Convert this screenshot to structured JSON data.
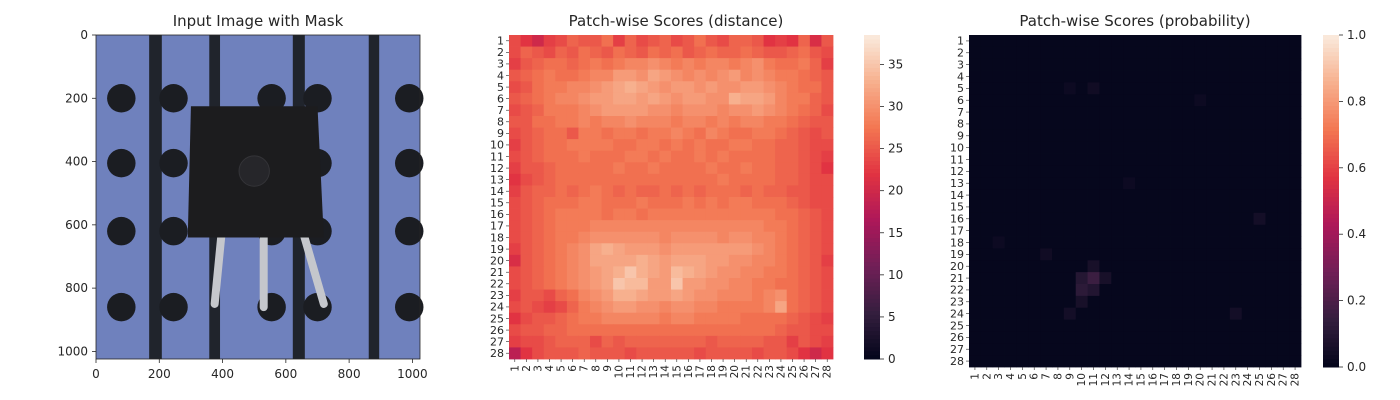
{
  "figure": {
    "panels": [
      {
        "title": "Input Image with Mask"
      },
      {
        "title": "Patch-wise Scores (distance)"
      },
      {
        "title": "Patch-wise Scores (probability)"
      }
    ]
  },
  "colors": {
    "background": "#ffffff",
    "board_blue": "#6f81bd",
    "board_slot": "#20242c",
    "board_hole": "#1b1d22",
    "component_body": "#1c1c1e",
    "lead_silver": "#c5c7cc",
    "colormap": "rocket",
    "colormap_stops": [
      "#03051a",
      "#341e3e",
      "#701f57",
      "#ad1759",
      "#e13342",
      "#f37651",
      "#f7b08e",
      "#faebdd"
    ]
  },
  "chart_data": [
    {
      "type": "image",
      "title": "Input Image with Mask",
      "description_visible": "photo of a black transistor on a blue perforated board with three silver leads",
      "xticks": [
        0,
        200,
        400,
        600,
        800,
        1000
      ],
      "yticks": [
        0,
        200,
        400,
        600,
        800,
        1000
      ],
      "xlim": [
        0,
        1024
      ],
      "ylim": [
        1024,
        0
      ]
    },
    {
      "type": "heatmap",
      "title": "Patch-wise Scores (distance)",
      "rows": 28,
      "cols": 28,
      "row_labels": [
        "1",
        "2",
        "3",
        "4",
        "5",
        "6",
        "7",
        "8",
        "9",
        "10",
        "11",
        "12",
        "13",
        "14",
        "15",
        "16",
        "17",
        "18",
        "19",
        "20",
        "21",
        "22",
        "23",
        "24",
        "25",
        "26",
        "27",
        "28"
      ],
      "col_labels": [
        "1",
        "2",
        "3",
        "4",
        "5",
        "6",
        "7",
        "8",
        "9",
        "10",
        "11",
        "12",
        "13",
        "14",
        "15",
        "16",
        "17",
        "18",
        "19",
        "20",
        "21",
        "22",
        "23",
        "24",
        "25",
        "26",
        "27",
        "28"
      ],
      "vmin": 0,
      "vmax": 38.5,
      "colorbar_ticks": [
        "0",
        "5",
        "10",
        "15",
        "20",
        "25",
        "30",
        "35"
      ],
      "values": [
        [
          24,
          22,
          20,
          23,
          24,
          26,
          25,
          25,
          27,
          23,
          26,
          24,
          25,
          26,
          24,
          25,
          27,
          25,
          24,
          26,
          26,
          25,
          22,
          23,
          22,
          26,
          21,
          25
        ],
        [
          24,
          26,
          25,
          24,
          26,
          25,
          27,
          26,
          25,
          27,
          26,
          25,
          27,
          26,
          27,
          25,
          26,
          27,
          26,
          26,
          27,
          26,
          25,
          25,
          26,
          27,
          25,
          24
        ],
        [
          23,
          25,
          26,
          27,
          27,
          26,
          27,
          28,
          27,
          28,
          29,
          29,
          30,
          29,
          28,
          29,
          28,
          29,
          29,
          28,
          29,
          30,
          28,
          27,
          27,
          28,
          26,
          23
        ],
        [
          25,
          26,
          27,
          28,
          27,
          27,
          28,
          29,
          29,
          31,
          31,
          30,
          32,
          31,
          30,
          29,
          30,
          29,
          30,
          31,
          29,
          30,
          29,
          28,
          28,
          27,
          26,
          25
        ],
        [
          24,
          25,
          27,
          28,
          28,
          29,
          29,
          30,
          31,
          32,
          33,
          32,
          31,
          30,
          31,
          31,
          30,
          31,
          30,
          30,
          31,
          31,
          30,
          29,
          28,
          27,
          27,
          25
        ],
        [
          25,
          26,
          27,
          28,
          29,
          29,
          30,
          31,
          31,
          32,
          32,
          31,
          32,
          31,
          30,
          31,
          31,
          30,
          30,
          33,
          32,
          32,
          31,
          29,
          28,
          28,
          26,
          25
        ],
        [
          24,
          25,
          26,
          28,
          28,
          28,
          29,
          30,
          31,
          31,
          31,
          31,
          30,
          30,
          29,
          30,
          30,
          30,
          29,
          30,
          30,
          31,
          30,
          29,
          28,
          27,
          26,
          24
        ],
        [
          25,
          25,
          27,
          27,
          28,
          28,
          29,
          28,
          29,
          29,
          30,
          29,
          29,
          29,
          28,
          29,
          29,
          28,
          29,
          28,
          29,
          29,
          28,
          28,
          27,
          26,
          25,
          25
        ],
        [
          24,
          25,
          26,
          27,
          27,
          25,
          28,
          28,
          27,
          28,
          28,
          27,
          28,
          28,
          29,
          28,
          27,
          29,
          28,
          27,
          27,
          28,
          28,
          27,
          26,
          25,
          24,
          25
        ],
        [
          23,
          25,
          26,
          27,
          27,
          28,
          28,
          28,
          28,
          27,
          27,
          28,
          28,
          27,
          28,
          27,
          28,
          27,
          27,
          28,
          28,
          27,
          27,
          26,
          26,
          25,
          24,
          24
        ],
        [
          24,
          25,
          26,
          27,
          27,
          27,
          28,
          27,
          27,
          27,
          28,
          28,
          27,
          28,
          27,
          27,
          28,
          27,
          28,
          27,
          27,
          27,
          27,
          26,
          26,
          25,
          24,
          23
        ],
        [
          23,
          25,
          25,
          26,
          27,
          27,
          27,
          27,
          27,
          28,
          27,
          27,
          28,
          27,
          27,
          27,
          27,
          28,
          27,
          27,
          28,
          27,
          27,
          26,
          26,
          25,
          24,
          22
        ],
        [
          22,
          24,
          25,
          26,
          27,
          27,
          27,
          27,
          27,
          27,
          27,
          27,
          27,
          27,
          27,
          27,
          27,
          27,
          28,
          27,
          27,
          27,
          27,
          26,
          26,
          25,
          24,
          24
        ],
        [
          23,
          25,
          26,
          26,
          27,
          26,
          27,
          28,
          27,
          26,
          27,
          26,
          26,
          27,
          26,
          27,
          26,
          27,
          27,
          27,
          26,
          27,
          26,
          26,
          25,
          25,
          24,
          24
        ],
        [
          24,
          25,
          26,
          27,
          27,
          27,
          28,
          28,
          27,
          27,
          27,
          28,
          27,
          27,
          27,
          28,
          27,
          28,
          27,
          28,
          28,
          27,
          27,
          27,
          26,
          25,
          24,
          24
        ],
        [
          24,
          25,
          26,
          27,
          28,
          28,
          28,
          28,
          27,
          28,
          28,
          27,
          28,
          28,
          28,
          28,
          28,
          28,
          28,
          28,
          28,
          28,
          28,
          27,
          27,
          26,
          25,
          24
        ],
        [
          24,
          25,
          26,
          27,
          28,
          28,
          28,
          29,
          29,
          29,
          29,
          29,
          29,
          29,
          29,
          29,
          29,
          29,
          29,
          29,
          29,
          29,
          28,
          28,
          27,
          26,
          25,
          24
        ],
        [
          24,
          25,
          26,
          27,
          28,
          28,
          29,
          30,
          30,
          30,
          30,
          30,
          30,
          29,
          30,
          30,
          30,
          30,
          29,
          30,
          30,
          29,
          29,
          28,
          27,
          26,
          25,
          24
        ],
        [
          23,
          25,
          26,
          27,
          28,
          29,
          30,
          32,
          33,
          32,
          31,
          31,
          31,
          30,
          31,
          31,
          31,
          31,
          31,
          31,
          31,
          30,
          29,
          28,
          27,
          26,
          25,
          24
        ],
        [
          21,
          25,
          26,
          27,
          28,
          29,
          30,
          32,
          32,
          32,
          32,
          33,
          32,
          31,
          32,
          32,
          32,
          31,
          31,
          30,
          30,
          29,
          29,
          28,
          27,
          26,
          25,
          23
        ],
        [
          24,
          25,
          26,
          27,
          28,
          29,
          30,
          31,
          32,
          33,
          35,
          33,
          32,
          31,
          34,
          33,
          32,
          31,
          30,
          30,
          29,
          29,
          28,
          28,
          27,
          26,
          25,
          24
        ],
        [
          24,
          25,
          26,
          27,
          28,
          29,
          30,
          31,
          32,
          35,
          34,
          34,
          31,
          31,
          35,
          31,
          31,
          30,
          30,
          29,
          29,
          28,
          28,
          27,
          27,
          26,
          25,
          24
        ],
        [
          23,
          25,
          25,
          24,
          26,
          27,
          29,
          30,
          31,
          33,
          33,
          32,
          31,
          31,
          32,
          31,
          30,
          30,
          29,
          29,
          29,
          28,
          29,
          30,
          27,
          26,
          25,
          24
        ],
        [
          24,
          25,
          24,
          23,
          24,
          26,
          28,
          29,
          30,
          31,
          31,
          30,
          30,
          29,
          30,
          30,
          29,
          29,
          28,
          28,
          28,
          28,
          29,
          32,
          27,
          26,
          25,
          24
        ],
        [
          22,
          24,
          25,
          25,
          26,
          27,
          28,
          28,
          29,
          29,
          29,
          29,
          29,
          28,
          29,
          29,
          28,
          28,
          28,
          28,
          27,
          27,
          27,
          27,
          26,
          25,
          24,
          23
        ],
        [
          24,
          25,
          25,
          26,
          26,
          27,
          27,
          27,
          27,
          27,
          27,
          27,
          27,
          27,
          27,
          27,
          27,
          27,
          27,
          27,
          27,
          27,
          27,
          26,
          25,
          25,
          24,
          24
        ],
        [
          23,
          24,
          24,
          25,
          26,
          26,
          26,
          24,
          26,
          25,
          26,
          26,
          26,
          26,
          26,
          26,
          26,
          25,
          26,
          26,
          26,
          26,
          25,
          25,
          23,
          25,
          24,
          23
        ],
        [
          18,
          22,
          24,
          25,
          25,
          25,
          26,
          25,
          25,
          25,
          24,
          25,
          25,
          25,
          25,
          25,
          24,
          25,
          25,
          25,
          25,
          24,
          25,
          25,
          24,
          22,
          20,
          22
        ]
      ]
    },
    {
      "type": "heatmap",
      "title": "Patch-wise Scores (probability)",
      "rows": 28,
      "cols": 28,
      "row_labels": [
        "1",
        "2",
        "3",
        "4",
        "5",
        "6",
        "7",
        "8",
        "9",
        "10",
        "11",
        "12",
        "13",
        "14",
        "15",
        "16",
        "17",
        "18",
        "19",
        "20",
        "21",
        "22",
        "23",
        "24",
        "25",
        "26",
        "27",
        "28"
      ],
      "col_labels": [
        "1",
        "2",
        "3",
        "4",
        "5",
        "6",
        "7",
        "8",
        "9",
        "10",
        "11",
        "12",
        "13",
        "14",
        "15",
        "16",
        "17",
        "18",
        "19",
        "20",
        "21",
        "22",
        "23",
        "24",
        "25",
        "26",
        "27",
        "28"
      ],
      "vmin": 0,
      "vmax": 1.0,
      "colorbar_ticks": [
        "0.0",
        "0.2",
        "0.4",
        "0.6",
        "0.8",
        "1.0"
      ],
      "hotspots": [
        {
          "row": 21,
          "col": 11,
          "value": 0.16
        },
        {
          "row": 21,
          "col": 10,
          "value": 0.1
        },
        {
          "row": 22,
          "col": 10,
          "value": 0.12
        },
        {
          "row": 22,
          "col": 11,
          "value": 0.09
        },
        {
          "row": 23,
          "col": 10,
          "value": 0.06
        },
        {
          "row": 20,
          "col": 11,
          "value": 0.06
        },
        {
          "row": 21,
          "col": 12,
          "value": 0.06
        },
        {
          "row": 24,
          "col": 9,
          "value": 0.05
        },
        {
          "row": 19,
          "col": 7,
          "value": 0.04
        },
        {
          "row": 16,
          "col": 25,
          "value": 0.05
        },
        {
          "row": 24,
          "col": 23,
          "value": 0.05
        },
        {
          "row": 5,
          "col": 11,
          "value": 0.04
        },
        {
          "row": 5,
          "col": 9,
          "value": 0.03
        },
        {
          "row": 6,
          "col": 20,
          "value": 0.03
        },
        {
          "row": 18,
          "col": 3,
          "value": 0.03
        },
        {
          "row": 13,
          "col": 14,
          "value": 0.03
        }
      ],
      "baseline_value": 0.01
    }
  ]
}
